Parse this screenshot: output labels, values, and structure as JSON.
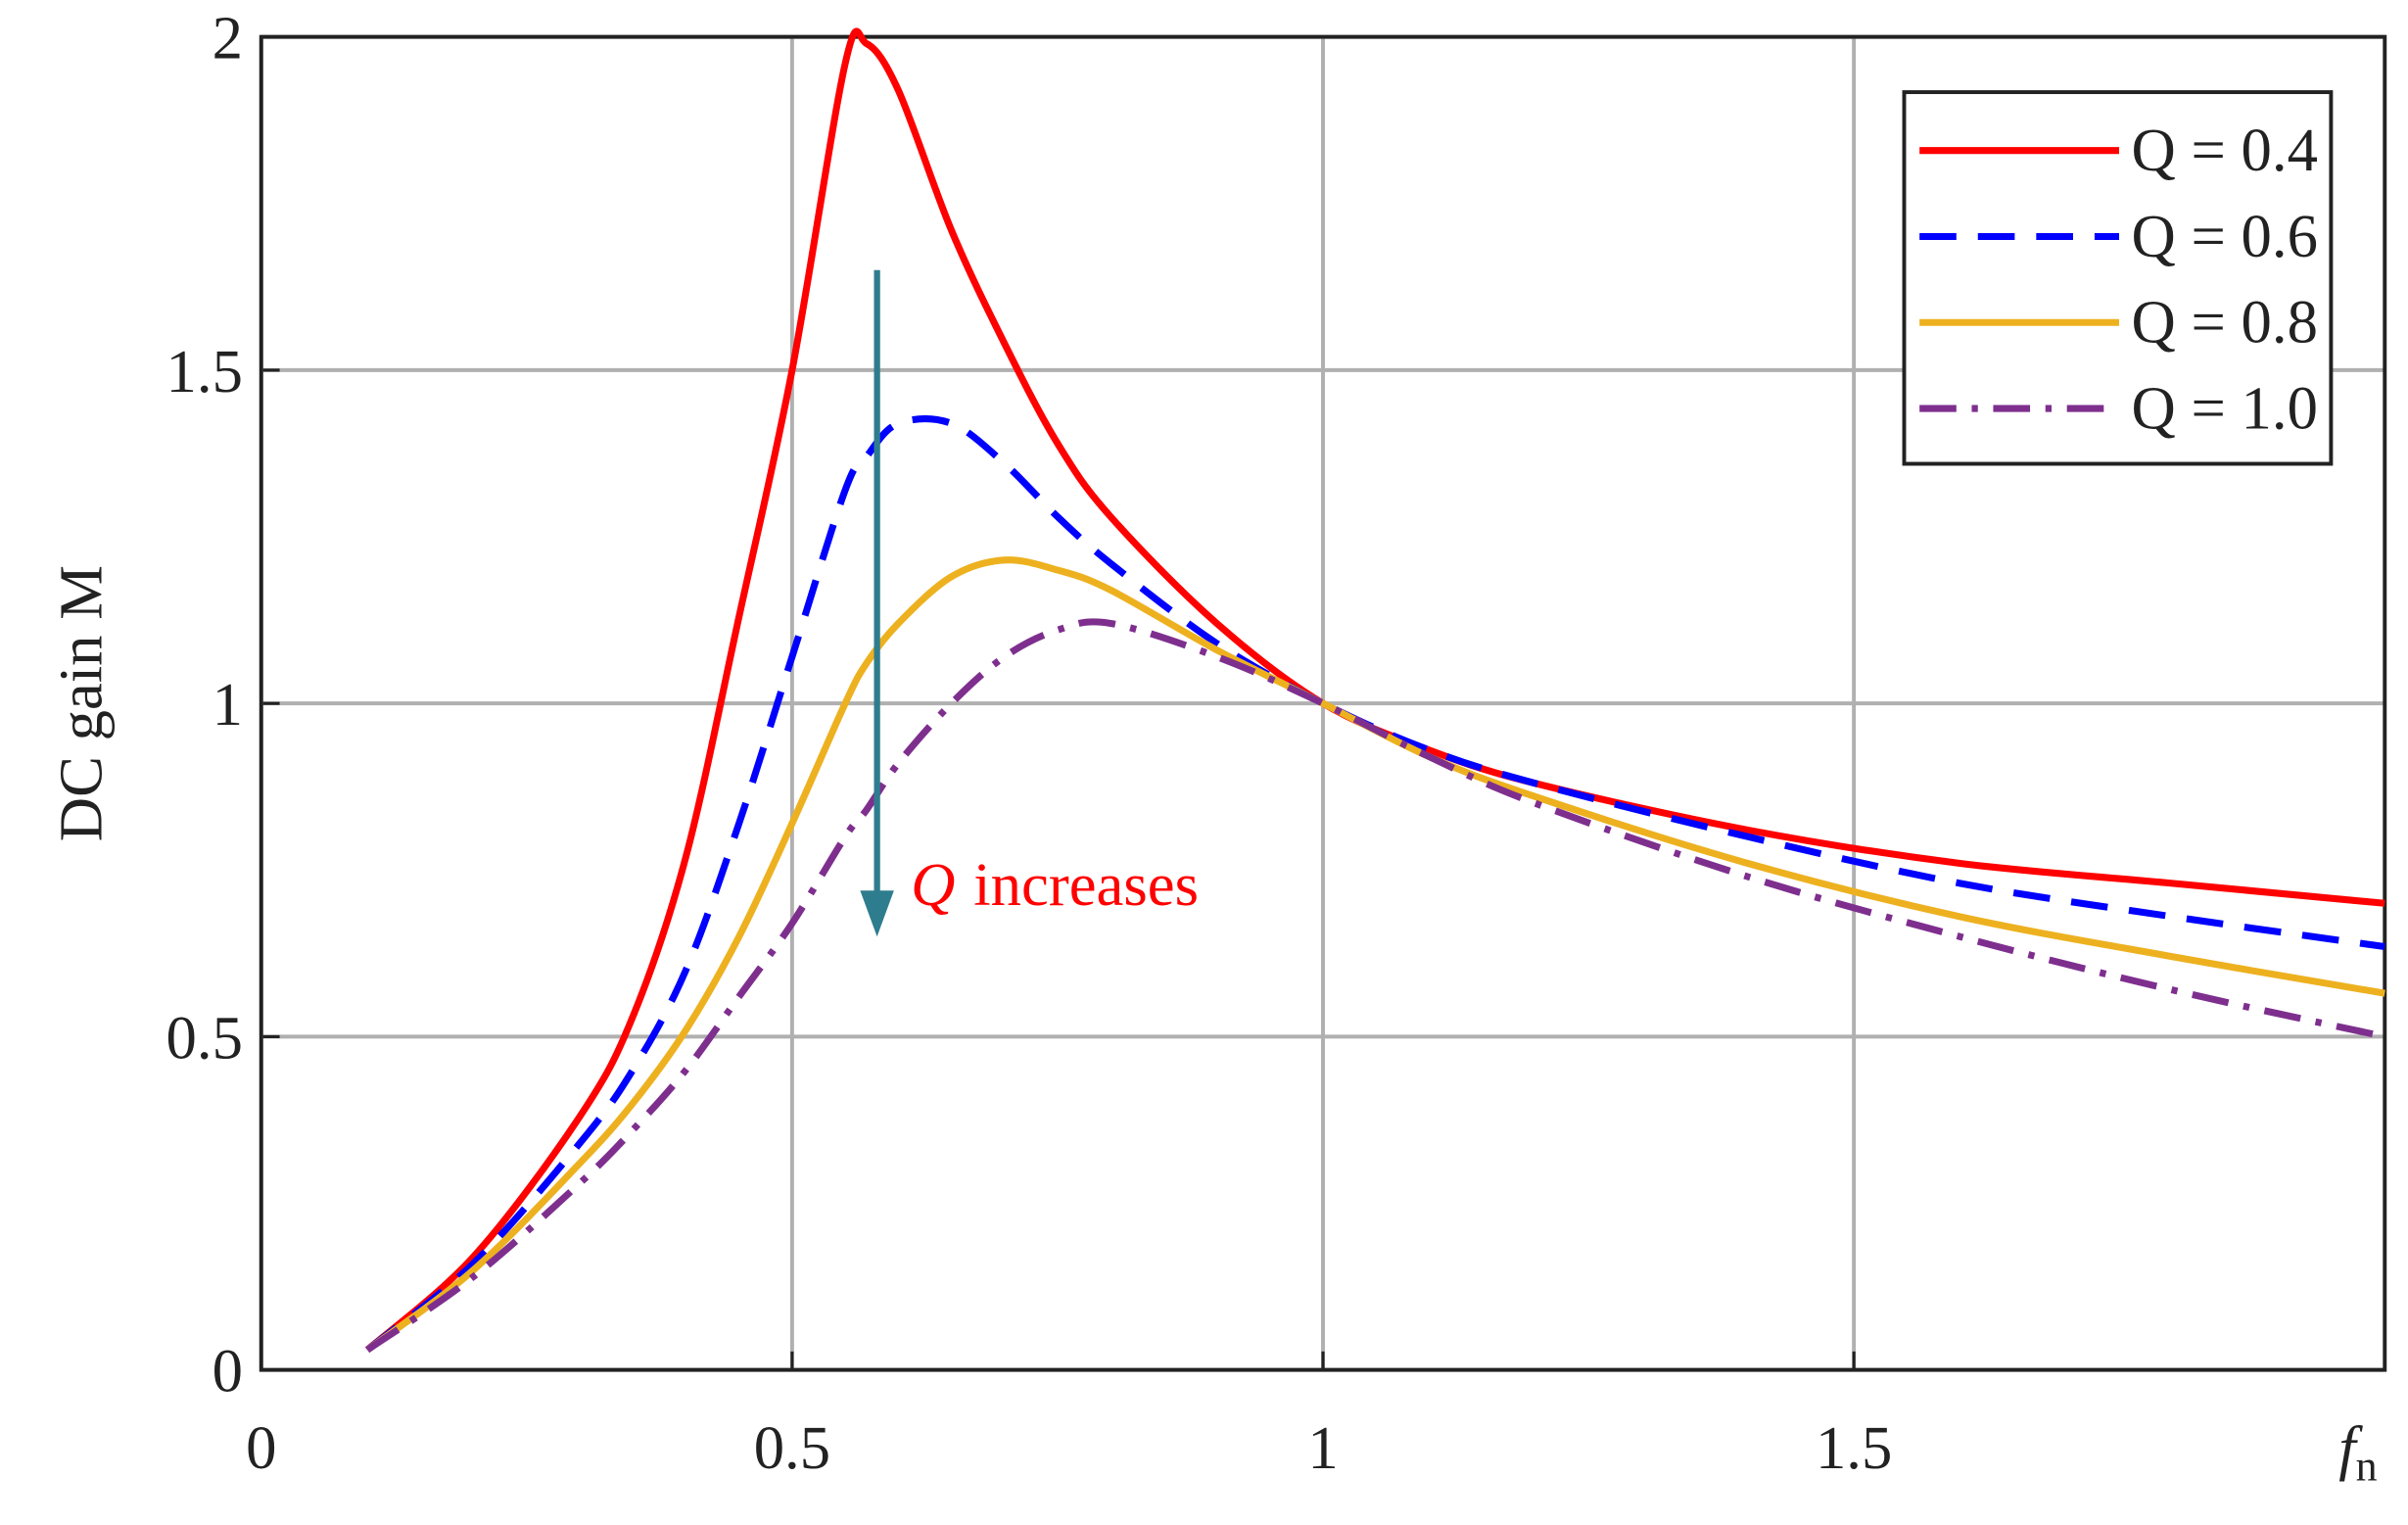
{
  "chart_data": {
    "type": "line",
    "ylabel": "DC gain M",
    "xlabel": {
      "symbol": "f",
      "subscript": "n"
    },
    "x": [
      0.1,
      0.2,
      0.3,
      0.35,
      0.4,
      0.45,
      0.5,
      0.55,
      0.57,
      0.6,
      0.65,
      0.7,
      0.75,
      0.8,
      0.9,
      1,
      1.1,
      1.2,
      1.4,
      1.6,
      1.8,
      2
    ],
    "series": [
      {
        "name": "Q = 0.4",
        "color": "#ff0000",
        "dash": "solid",
        "values": [
          0.03,
          0.17,
          0.38,
          0.53,
          0.77,
          1.13,
          1.5,
          1.96,
          1.99,
          1.92,
          1.71,
          1.54,
          1.39,
          1.28,
          1.12,
          1,
          0.93,
          0.88,
          0.81,
          0.76,
          0.73,
          0.7
        ]
      },
      {
        "name": "Q = 0.6",
        "color": "#0000ff",
        "dash": "dashed",
        "values": [
          0.03,
          0.16,
          0.34,
          0.45,
          0.6,
          0.82,
          1.07,
          1.32,
          1.37,
          1.42,
          1.42,
          1.36,
          1.28,
          1.21,
          1.09,
          1,
          0.93,
          0.88,
          0.8,
          0.73,
          0.68,
          0.635
        ]
      },
      {
        "name": "Q = 0.8",
        "color": "#edb120",
        "dash": "solid",
        "values": [
          0.03,
          0.15,
          0.31,
          0.4,
          0.51,
          0.65,
          0.82,
          1.0,
          1.06,
          1.12,
          1.19,
          1.215,
          1.2,
          1.17,
          1.08,
          1,
          0.92,
          0.86,
          0.76,
          0.68,
          0.62,
          0.565
        ]
      },
      {
        "name": "Q = 1.0",
        "color": "#7e2f8e",
        "dash": "dashdot",
        "values": [
          0.03,
          0.14,
          0.28,
          0.36,
          0.45,
          0.56,
          0.67,
          0.8,
          0.84,
          0.91,
          1.0,
          1.07,
          1.11,
          1.12,
          1.07,
          1,
          0.92,
          0.85,
          0.74,
          0.65,
          0.57,
          0.5
        ]
      }
    ],
    "xlim": [
      0,
      2
    ],
    "ylim": [
      0,
      2
    ],
    "xticks": [
      0,
      0.5,
      1,
      1.5
    ],
    "yticks": [
      0,
      0.5,
      1,
      1.5,
      2
    ],
    "grid": true,
    "legend": "upper right",
    "annotation": {
      "symbol": "Q",
      "text": "increases",
      "color": "#ff0000",
      "arrow_color": "#2e7d8e",
      "arrow_from": [
        0.58,
        1.65
      ],
      "arrow_to": [
        0.58,
        0.65
      ]
    }
  }
}
